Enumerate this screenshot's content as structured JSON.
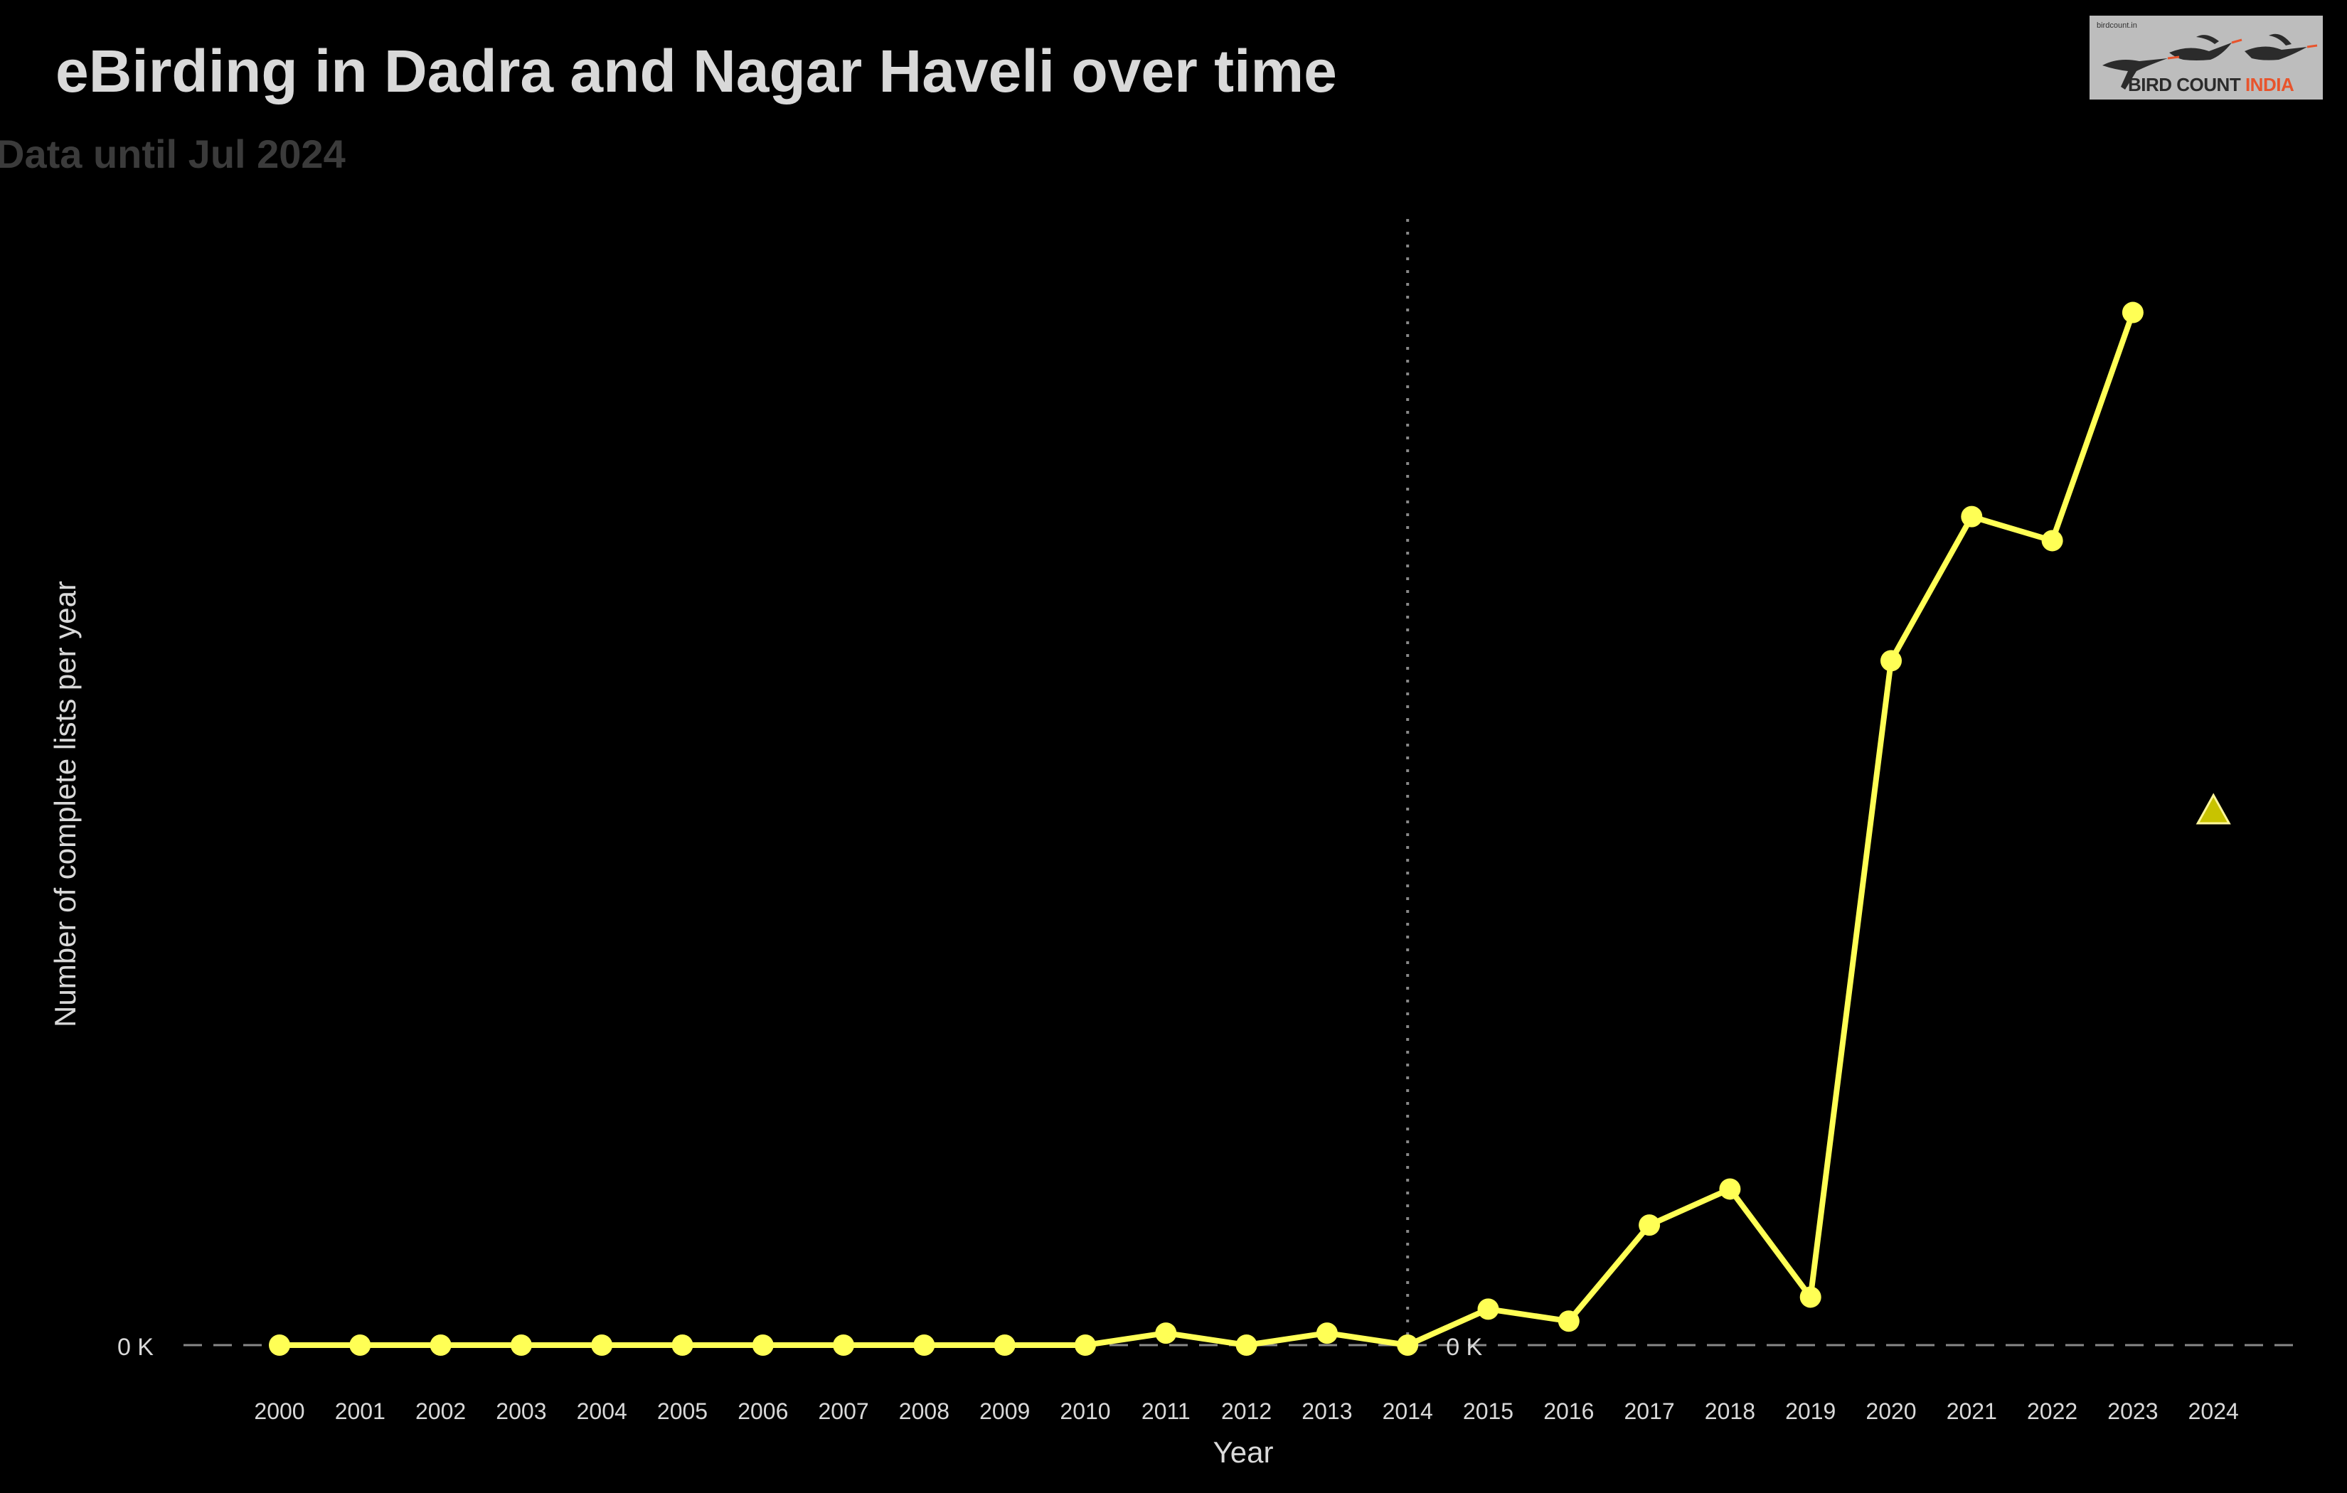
{
  "header": {
    "title": "eBirding in Dadra and Nagar Haveli over time",
    "subtitle": "Data until Jul 2024"
  },
  "logo": {
    "small_text": "birdcount.in",
    "word1": "BIRD COUNT",
    "word2": "INDIA"
  },
  "colors": {
    "background": "#000000",
    "series": "#ffff55",
    "projection": "#c8c300",
    "text": "#d9d9d9",
    "subtitle": "#3b3b3b",
    "reference_line": "#888888"
  },
  "chart_data": {
    "type": "line",
    "xlabel": "Year",
    "ylabel": "Number of complete lists per year",
    "x": [
      "2000",
      "2001",
      "2002",
      "2003",
      "2004",
      "2005",
      "2006",
      "2007",
      "2008",
      "2009",
      "2010",
      "2011",
      "2012",
      "2013",
      "2014",
      "2015",
      "2016",
      "2017",
      "2018",
      "2019",
      "2020",
      "2021",
      "2022",
      "2023"
    ],
    "values": [
      0,
      0,
      0,
      0,
      0,
      0,
      0,
      0,
      0,
      0,
      0,
      2,
      0,
      2,
      0,
      6,
      4,
      20,
      26,
      8,
      114,
      138,
      134,
      172
    ],
    "ylim": [
      0,
      180
    ],
    "y_ticks": [
      {
        "value": 0,
        "label": "0 K"
      }
    ],
    "x_ticks": [
      "2000",
      "2001",
      "2002",
      "2003",
      "2004",
      "2005",
      "2006",
      "2007",
      "2008",
      "2009",
      "2010",
      "2011",
      "2012",
      "2013",
      "2014",
      "2015",
      "2016",
      "2017",
      "2018",
      "2019",
      "2020",
      "2021",
      "2022",
      "2023",
      "2024"
    ],
    "projection": {
      "x": "2024",
      "value": 89
    },
    "reference_year": "2014",
    "reference_label": "0 K",
    "grid": false,
    "legend": "none"
  }
}
